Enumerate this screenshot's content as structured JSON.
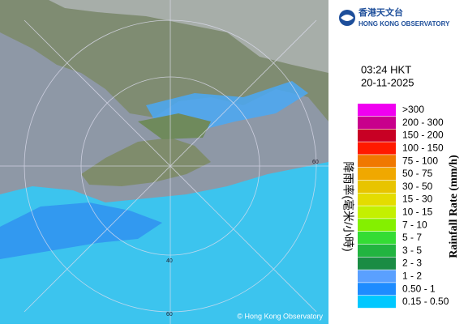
{
  "header": {
    "title_zh": "香港天文台",
    "title_en": "HONG KONG OBSERVATORY"
  },
  "timestamp": {
    "time": "03:24 HKT",
    "date": "20-11-2025"
  },
  "legend": {
    "title_zh": "降雨率(毫米/小時)",
    "title_en": "Rainfall Rate (mm/h)",
    "items": [
      {
        "label": ">300",
        "color": "#f000f0"
      },
      {
        "label": "200 - 300",
        "color": "#c8008c"
      },
      {
        "label": "150 - 200",
        "color": "#c80024"
      },
      {
        "label": "100 - 150",
        "color": "#ff1a00"
      },
      {
        "label": "75 - 100",
        "color": "#f07800"
      },
      {
        "label": "50 - 75",
        "color": "#f0a800"
      },
      {
        "label": "30 - 50",
        "color": "#e8c400"
      },
      {
        "label": "15 - 30",
        "color": "#e4dc00"
      },
      {
        "label": "10 - 15",
        "color": "#c4f000"
      },
      {
        "label": "7 - 10",
        "color": "#84f000"
      },
      {
        "label": "5 - 7",
        "color": "#34dc34"
      },
      {
        "label": "3 - 5",
        "color": "#22b440"
      },
      {
        "label": "2 - 3",
        "color": "#1a8c44"
      },
      {
        "label": "1 - 2",
        "color": "#5aa0ff"
      },
      {
        "label": "0.50 - 1",
        "color": "#1e8cff"
      },
      {
        "label": "0.15 - 0.50",
        "color": "#00c8ff"
      }
    ]
  },
  "map": {
    "range_labels": [
      "60",
      "40",
      "60"
    ],
    "copyright": "© Hong Kong Observatory"
  }
}
